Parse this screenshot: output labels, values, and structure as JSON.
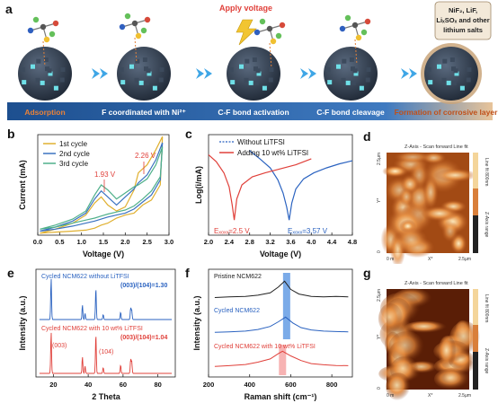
{
  "panel_letters": {
    "a": "a",
    "b": "b",
    "c": "c",
    "d": "d",
    "e": "e",
    "f": "f",
    "g": "g"
  },
  "panel_a": {
    "apply_voltage": "Apply voltage",
    "salt_box": [
      "NiF₂,  LiF,",
      "LiₓSOₓ and other",
      "lithium salts"
    ],
    "stages": [
      "Adsorption",
      "F coordinated with Ni²⁺",
      "C-F bond activation",
      "C-F bond cleavage",
      "Formation of corrosive layer"
    ],
    "colors": {
      "band_left": "#1d4f8f",
      "band_right": "#e8c49a",
      "stage_text": "#ffffff",
      "last_stage_text": "#c0501a",
      "arrow": "#3fa6e6",
      "particle": "#2e3a4a"
    }
  },
  "chart_data": [
    {
      "id": "b",
      "type": "line",
      "xlabel": "Voltage (V)",
      "ylabel": "Current (mA)",
      "xlim": [
        0,
        3.0
      ],
      "xticks": [
        0,
        0.5,
        1.0,
        1.5,
        2.0,
        2.5,
        3.0
      ],
      "xtick_labels": [
        "0.0",
        "0.5",
        "1.0",
        "1.5",
        "2.0",
        "2.5",
        "3.0"
      ],
      "ylim": [
        0,
        1
      ],
      "legend_placement": "top-left",
      "annotations": [
        {
          "text": "2.26 V",
          "x": 2.26,
          "y": 0.6
        },
        {
          "text": "1.93 V",
          "x": 1.93,
          "y": 0.48
        }
      ],
      "series": [
        {
          "name": "1st  cycle",
          "color": "#e0b030",
          "x": [
            0.05,
            0.4,
            0.8,
            1.1,
            1.3,
            1.45,
            1.6,
            1.8,
            2.0,
            2.2,
            2.3,
            2.5,
            2.7,
            2.85,
            2.8,
            2.6,
            2.4,
            2.2,
            2.0,
            1.8,
            1.6,
            1.45,
            1.3,
            1.1,
            0.8,
            0.4,
            0.05
          ],
          "y": [
            0.02,
            0.06,
            0.12,
            0.2,
            0.32,
            0.38,
            0.3,
            0.24,
            0.28,
            0.45,
            0.62,
            0.7,
            0.85,
            0.98,
            0.5,
            0.35,
            0.3,
            0.22,
            0.2,
            0.17,
            0.12,
            0.1,
            0.07,
            0.05,
            0.04,
            0.03,
            0.02
          ]
        },
        {
          "name": "2nd cycle",
          "color": "#3a72c0",
          "x": [
            0.05,
            0.4,
            0.8,
            1.1,
            1.3,
            1.45,
            1.6,
            1.8,
            2.0,
            2.2,
            2.3,
            2.5,
            2.7,
            2.85,
            2.8,
            2.6,
            2.4,
            2.2,
            2.0,
            1.8,
            1.6,
            1.45,
            1.3,
            1.1,
            0.8,
            0.4,
            0.05
          ],
          "y": [
            0.04,
            0.08,
            0.14,
            0.22,
            0.36,
            0.44,
            0.38,
            0.3,
            0.38,
            0.46,
            0.52,
            0.6,
            0.75,
            0.92,
            0.55,
            0.4,
            0.33,
            0.26,
            0.22,
            0.2,
            0.18,
            0.16,
            0.14,
            0.12,
            0.09,
            0.06,
            0.04
          ]
        },
        {
          "name": "3rd  cycle",
          "color": "#4fb08a",
          "x": [
            0.05,
            0.4,
            0.8,
            1.1,
            1.3,
            1.45,
            1.6,
            1.8,
            2.0,
            2.2,
            2.3,
            2.5,
            2.7,
            2.85,
            2.8,
            2.6,
            2.4,
            2.2,
            2.0,
            1.8,
            1.6,
            1.45,
            1.3,
            1.1,
            0.8,
            0.4,
            0.05
          ],
          "y": [
            0.06,
            0.1,
            0.16,
            0.24,
            0.4,
            0.5,
            0.45,
            0.36,
            0.42,
            0.48,
            0.5,
            0.56,
            0.7,
            0.88,
            0.58,
            0.44,
            0.36,
            0.29,
            0.25,
            0.23,
            0.21,
            0.19,
            0.17,
            0.15,
            0.12,
            0.08,
            0.06
          ]
        }
      ]
    },
    {
      "id": "c",
      "type": "line",
      "xlabel": "Voltage (V)",
      "ylabel": "Log(i/mA)",
      "xlim": [
        2.0,
        4.8
      ],
      "xticks": [
        2.0,
        2.4,
        2.8,
        3.2,
        3.6,
        4.0,
        4.4,
        4.8
      ],
      "xtick_labels": [
        "2.0",
        "2.4",
        "2.8",
        "3.2",
        "3.6",
        "4.0",
        "4.4",
        "4.8"
      ],
      "ylim": [
        0,
        1
      ],
      "legend_placement": "top",
      "annotations": [
        {
          "text": "Eₓₒₓₓ=2.5 V",
          "x": 2.5,
          "y": 0.1,
          "color": "#e0403a"
        },
        {
          "text": "Eₓₒₓₓ=3.57 V",
          "x": 3.57,
          "y": 0.1,
          "color": "#2a62c0"
        }
      ],
      "series": [
        {
          "name": "Without LiTFSI",
          "color": "#2a62c0",
          "x": [
            2.8,
            3.0,
            3.2,
            3.35,
            3.45,
            3.52,
            3.57,
            3.62,
            3.7,
            3.85,
            4.05,
            4.3,
            4.55,
            4.8
          ],
          "y": [
            0.84,
            0.76,
            0.67,
            0.55,
            0.42,
            0.28,
            0.15,
            0.32,
            0.46,
            0.56,
            0.62,
            0.67,
            0.71,
            0.74
          ]
        },
        {
          "name": "Adding 10 wt% LiTFSI",
          "color": "#e0403a",
          "x": [
            2.0,
            2.15,
            2.3,
            2.4,
            2.46,
            2.5,
            2.55,
            2.65,
            2.85,
            3.1,
            3.4,
            3.7,
            4.0
          ],
          "y": [
            0.8,
            0.73,
            0.62,
            0.48,
            0.3,
            0.15,
            0.36,
            0.5,
            0.58,
            0.62,
            0.66,
            0.7,
            0.76
          ]
        }
      ]
    },
    {
      "id": "e",
      "type": "line",
      "xlabel": "2 Theta",
      "ylabel": "Intensity (a.u.)",
      "xlim": [
        10,
        90
      ],
      "xticks": [
        20,
        40,
        60,
        80
      ],
      "xtick_labels": [
        "20",
        "40",
        "60",
        "80"
      ],
      "series_labels": [
        {
          "text": "Cycled NCM622 without LiTFSI",
          "color": "#2a62c0"
        },
        {
          "text": "(003)/(104)=1.30",
          "color": "#2a62c0"
        },
        {
          "text": "Cycled NCM622 with 10 wt% LiTFSI",
          "color": "#e0403a"
        },
        {
          "text": "(003)/(104)=1.04",
          "color": "#e0403a"
        },
        {
          "text": "(003)",
          "color": "#e0403a"
        },
        {
          "text": "(104)",
          "color": "#e0403a"
        }
      ],
      "peaks_top": [
        [
          18.7,
          1.0
        ],
        [
          36.7,
          0.35
        ],
        [
          38.2,
          0.15
        ],
        [
          44.4,
          0.77
        ],
        [
          48.6,
          0.12
        ],
        [
          58.6,
          0.18
        ],
        [
          64.4,
          0.28
        ],
        [
          65.0,
          0.22
        ]
      ],
      "peaks_bottom": [
        [
          18.7,
          1.0
        ],
        [
          36.7,
          0.4
        ],
        [
          38.2,
          0.18
        ],
        [
          44.4,
          0.96
        ],
        [
          48.6,
          0.14
        ],
        [
          58.6,
          0.2
        ],
        [
          64.4,
          0.34
        ],
        [
          65.0,
          0.28
        ]
      ]
    },
    {
      "id": "f",
      "type": "line",
      "xlabel": "Raman shift (cm⁻¹)",
      "ylabel": "Intensity (a.u.)",
      "xlim": [
        200,
        900
      ],
      "xticks": [
        200,
        400,
        600,
        800
      ],
      "xtick_labels": [
        "200",
        "400",
        "600",
        "800"
      ],
      "series": [
        {
          "name": "Pristine NCM622",
          "color": "#222222",
          "x": [
            230,
            300,
            380,
            440,
            500,
            540,
            570,
            600,
            640,
            700,
            760,
            820,
            880
          ],
          "y": [
            0.25,
            0.28,
            0.3,
            0.35,
            0.45,
            0.7,
            0.95,
            0.6,
            0.4,
            0.3,
            0.28,
            0.3,
            0.28
          ]
        },
        {
          "name": "Cycled NCM622",
          "color": "#2a62c0",
          "x": [
            230,
            300,
            380,
            440,
            500,
            540,
            575,
            610,
            650,
            700,
            760,
            820,
            880
          ],
          "y": [
            0.3,
            0.32,
            0.35,
            0.42,
            0.55,
            0.75,
            0.95,
            0.7,
            0.5,
            0.4,
            0.35,
            0.33,
            0.32
          ]
        },
        {
          "name": "Cycled NCM622 with 10 wt% LiTFSI",
          "color": "#e0403a",
          "x": [
            230,
            300,
            380,
            440,
            500,
            540,
            560,
            600,
            650,
            700,
            760,
            820,
            880
          ],
          "y": [
            0.3,
            0.33,
            0.38,
            0.48,
            0.62,
            0.85,
            0.95,
            0.75,
            0.55,
            0.42,
            0.37,
            0.34,
            0.33
          ]
        }
      ],
      "highlight_bands": [
        {
          "x": 580,
          "color": "#4f8fe0"
        },
        {
          "x": 560,
          "color": "#f5a0a0"
        }
      ]
    }
  ],
  "panel_d": {
    "header": "Z-Axis - Scan forward    Line fit",
    "scale_top": "Line fit 800nm",
    "scale_bottom": "Z-Axis range",
    "ticks_y": [
      "2.5µm",
      "Y*",
      "0"
    ],
    "ticks_x": [
      "0 m",
      "X*",
      "2.5µm"
    ]
  },
  "panel_g": {
    "header": "Z-Axis - Scan forward    Line fit",
    "scale_top": "Line fit 800nm",
    "scale_bottom": "Z-Axis range",
    "ticks_y": [
      "2.5µm",
      "Y*",
      "0"
    ],
    "ticks_x": [
      "0 m",
      "X*",
      "2.5µm"
    ]
  }
}
